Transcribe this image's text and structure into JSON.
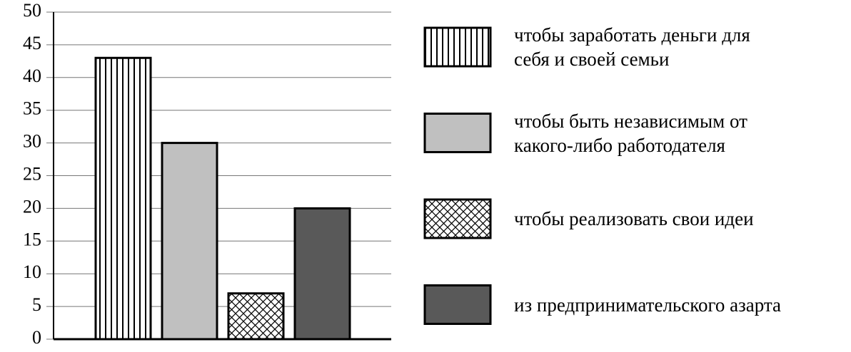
{
  "chart_data": {
    "type": "bar",
    "series": [
      {
        "name": "чтобы заработать деньги для\nсебя и своей семьи",
        "color": "#ffffff",
        "pattern": "vertical",
        "values": [
          43
        ]
      },
      {
        "name": "чтобы быть независимым от\nкакого-либо работодателя",
        "color": "#c0c0c0",
        "values": [
          30
        ]
      },
      {
        "name": "чтобы реализовать свои идеи",
        "color": "#ffffff",
        "pattern": "crosshatch",
        "values": [
          7
        ]
      },
      {
        "name": "из предпринимательского азарта",
        "color": "#595959",
        "values": [
          20
        ]
      }
    ],
    "ylim": [
      0,
      50
    ],
    "yticks": [
      0,
      5,
      10,
      15,
      20,
      25,
      30,
      35,
      40,
      45,
      50
    ],
    "grid": true
  }
}
